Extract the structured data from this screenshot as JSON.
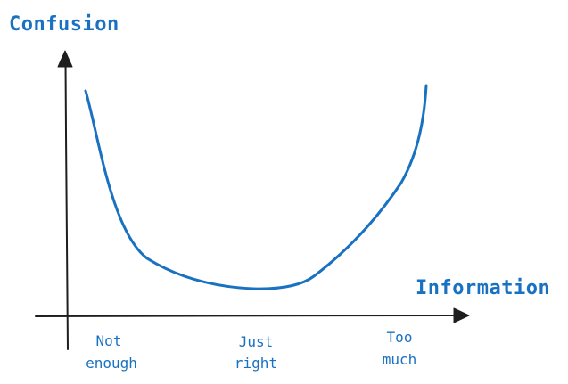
{
  "colors": {
    "accent": "#1971c2",
    "axis": "#1e1e1e"
  },
  "labels": {
    "y_axis": "Confusion",
    "x_axis": "Information"
  },
  "x_categories": [
    {
      "line1": "Not",
      "line2": "enough"
    },
    {
      "line1": "Just",
      "line2": "right"
    },
    {
      "line1": "Too",
      "line2": "much"
    }
  ]
}
